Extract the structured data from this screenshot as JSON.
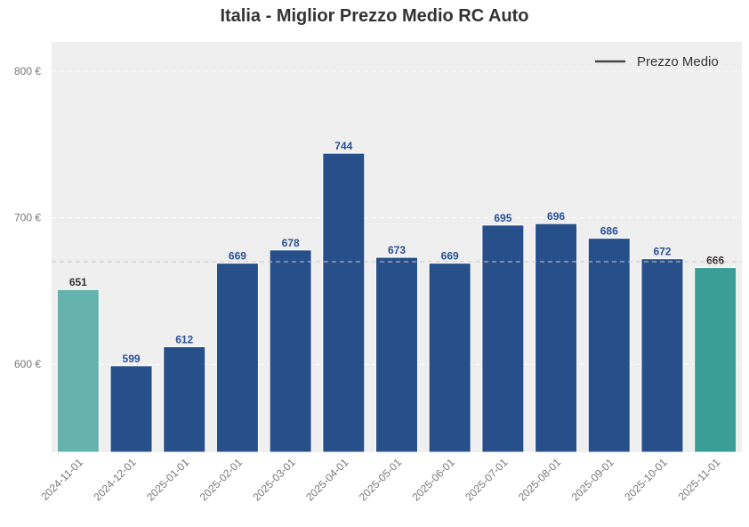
{
  "chart_data": {
    "type": "bar",
    "title": "Italia - Miglior Prezzo Medio RC Auto",
    "xlabel": "",
    "ylabel": "",
    "categories": [
      "2024-11-01",
      "2024-12-01",
      "2025-01-01",
      "2025-02-01",
      "2025-03-01",
      "2025-04-01",
      "2025-05-01",
      "2025-06-01",
      "2025-07-01",
      "2025-08-01",
      "2025-09-01",
      "2025-10-01",
      "2025-11-01"
    ],
    "values": [
      651,
      599,
      612,
      669,
      678,
      744,
      673,
      669,
      695,
      696,
      686,
      672,
      666
    ],
    "data_labels": [
      "651",
      "599",
      "612",
      "669",
      "678",
      "744",
      "673",
      "669",
      "695",
      "696",
      "686",
      "672",
      "666"
    ],
    "ylim": [
      540,
      820
    ],
    "yticks": [
      600,
      700,
      800
    ],
    "ytick_labels": [
      "600 €",
      "700 €",
      "800 €"
    ],
    "mean_line": {
      "value": 670,
      "style": "dashed"
    },
    "legend": {
      "position": "top-right",
      "entries": [
        "Prezzo Medio"
      ]
    },
    "grid": true,
    "colors": {
      "bar": "#274f8a",
      "first_bar": "#66b2ad",
      "last_bar": "#3a9e96",
      "label": "#2a4f95",
      "edge_label": "#333333",
      "plot_bg": "#efefef"
    }
  }
}
